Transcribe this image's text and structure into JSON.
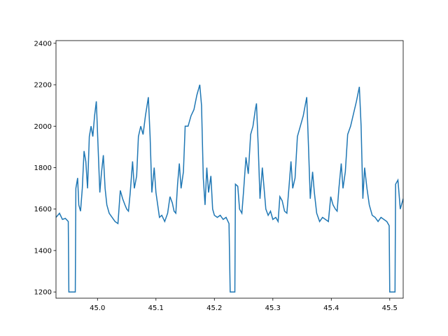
{
  "chart_data": {
    "type": "line",
    "x": [
      44.929,
      44.935,
      44.94,
      44.945,
      44.95,
      44.951,
      44.962,
      44.963,
      44.966,
      44.968,
      44.971,
      44.974,
      44.977,
      44.98,
      44.983,
      44.986,
      44.989,
      44.992,
      44.995,
      44.998,
      45.001,
      45.004,
      45.007,
      45.01,
      45.013,
      45.016,
      45.02,
      45.025,
      45.03,
      45.035,
      45.039,
      45.043,
      45.047,
      45.05,
      45.053,
      45.056,
      45.06,
      45.063,
      45.067,
      45.07,
      45.074,
      45.078,
      45.082,
      45.087,
      45.09,
      45.093,
      45.097,
      45.1,
      45.103,
      45.106,
      45.11,
      45.115,
      45.12,
      45.124,
      45.128,
      45.131,
      45.134,
      45.137,
      45.14,
      45.143,
      45.147,
      45.15,
      45.155,
      45.16,
      45.165,
      45.17,
      45.175,
      45.178,
      45.181,
      45.184,
      45.187,
      45.19,
      45.194,
      45.197,
      45.2,
      45.205,
      45.21,
      45.215,
      45.22,
      45.225,
      45.227,
      45.235,
      45.236,
      45.24,
      45.243,
      45.247,
      45.25,
      45.254,
      45.258,
      45.262,
      45.266,
      45.27,
      45.272,
      45.275,
      45.278,
      45.282,
      45.285,
      45.288,
      45.292,
      45.296,
      45.3,
      45.305,
      45.309,
      45.312,
      45.316,
      45.32,
      45.324,
      45.328,
      45.331,
      45.334,
      45.338,
      45.342,
      45.347,
      45.352,
      45.358,
      45.361,
      45.364,
      45.368,
      45.371,
      45.375,
      45.38,
      45.385,
      45.39,
      45.395,
      45.399,
      45.403,
      45.407,
      45.41,
      45.413,
      45.417,
      45.42,
      45.424,
      45.428,
      45.433,
      45.438,
      45.443,
      45.448,
      45.451,
      45.454,
      45.457,
      45.461,
      45.465,
      45.47,
      45.475,
      45.48,
      45.485,
      45.49,
      45.495,
      45.499,
      45.5,
      45.509,
      45.51,
      45.514,
      45.518,
      45.523
    ],
    "series": [
      {
        "color": "#1f77b4",
        "values": [
          1560,
          1580,
          1550,
          1555,
          1540,
          1200,
          1200,
          1700,
          1750,
          1620,
          1590,
          1700,
          1880,
          1830,
          1700,
          1950,
          2000,
          1950,
          2050,
          2120,
          1900,
          1680,
          1780,
          1860,
          1700,
          1620,
          1580,
          1560,
          1540,
          1530,
          1690,
          1650,
          1620,
          1600,
          1590,
          1680,
          1830,
          1700,
          1760,
          1950,
          2000,
          1960,
          2050,
          2140,
          1950,
          1680,
          1800,
          1680,
          1620,
          1560,
          1570,
          1540,
          1580,
          1660,
          1630,
          1590,
          1580,
          1720,
          1820,
          1700,
          1780,
          2000,
          2000,
          2050,
          2080,
          2150,
          2200,
          2100,
          1750,
          1620,
          1800,
          1680,
          1760,
          1600,
          1570,
          1560,
          1570,
          1550,
          1560,
          1530,
          1200,
          1200,
          1720,
          1710,
          1600,
          1580,
          1690,
          1850,
          1770,
          1960,
          2000,
          2080,
          2110,
          1900,
          1650,
          1800,
          1700,
          1600,
          1570,
          1590,
          1550,
          1560,
          1540,
          1660,
          1640,
          1590,
          1580,
          1720,
          1830,
          1700,
          1750,
          1950,
          2000,
          2050,
          2140,
          1900,
          1650,
          1780,
          1680,
          1580,
          1540,
          1560,
          1550,
          1540,
          1660,
          1620,
          1600,
          1590,
          1700,
          1820,
          1700,
          1780,
          1960,
          2000,
          2060,
          2120,
          2190,
          2000,
          1650,
          1800,
          1700,
          1620,
          1570,
          1560,
          1540,
          1560,
          1550,
          1540,
          1520,
          1200,
          1200,
          1720,
          1740,
          1600,
          1650
        ]
      }
    ],
    "xlim": [
      44.929,
      45.523
    ],
    "ylim": [
      1170,
      2413
    ],
    "xticks": [
      {
        "value": 45.0,
        "label": "45.0"
      },
      45.1,
      45.2,
      45.3,
      45.4,
      {
        "value": 45.5,
        "label": "45.5"
      }
    ],
    "yticks": [
      1200,
      1400,
      1600,
      1800,
      2000,
      2200,
      2400
    ]
  }
}
